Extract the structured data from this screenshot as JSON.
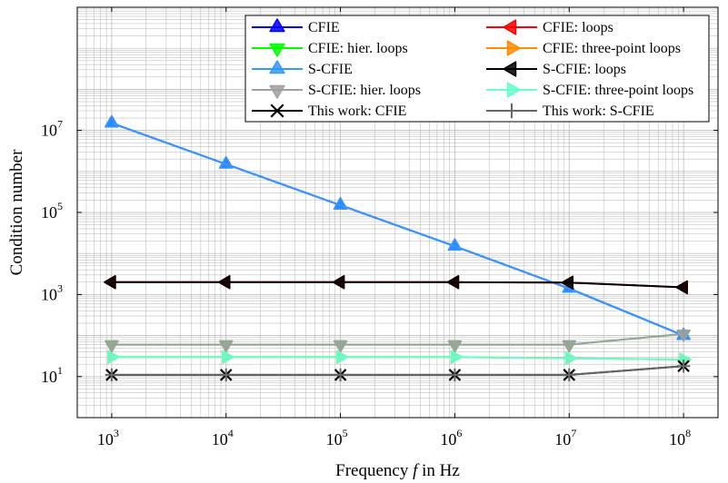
{
  "chart_data": {
    "type": "line",
    "x_scale": "log",
    "y_scale": "log",
    "xlim": [
      500,
      200000000
    ],
    "ylim": [
      1,
      10000000000
    ],
    "grid": true,
    "legend_placement": "top-right",
    "legend_columns": 2,
    "xlabel": {
      "prefix": "Frequency ",
      "var": "f",
      "suffix": " in Hz"
    },
    "ylabel": "Condition number",
    "x_ticks": [
      {
        "base": "10",
        "exp": "3",
        "value": 1000
      },
      {
        "base": "10",
        "exp": "4",
        "value": 10000
      },
      {
        "base": "10",
        "exp": "5",
        "value": 100000
      },
      {
        "base": "10",
        "exp": "6",
        "value": 1000000
      },
      {
        "base": "10",
        "exp": "7",
        "value": 10000000
      },
      {
        "base": "10",
        "exp": "8",
        "value": 100000000
      }
    ],
    "y_ticks": [
      {
        "base": "10",
        "exp": "1",
        "value": 10
      },
      {
        "base": "10",
        "exp": "3",
        "value": 1000
      },
      {
        "base": "10",
        "exp": "5",
        "value": 100000
      },
      {
        "base": "10",
        "exp": "7",
        "value": 10000000
      }
    ],
    "x": [
      1000,
      10000,
      100000,
      1000000,
      10000000,
      100000000
    ],
    "series": [
      {
        "name": "CFIE",
        "color": "#0000ff",
        "marker": "triangle-up",
        "values": [
          15000000,
          1500000,
          150000,
          15000,
          1400,
          100
        ]
      },
      {
        "name": "CFIE: loops",
        "color": "#ff0000",
        "marker": "triangle-left",
        "values": [
          2000,
          2000,
          2000,
          2000,
          1950,
          1500
        ]
      },
      {
        "name": "CFIE: hier. loops",
        "color": "#00ff00",
        "marker": "triangle-down",
        "values": [
          60,
          60,
          60,
          60,
          60,
          110
        ]
      },
      {
        "name": "CFIE: three-point loops",
        "color": "#ff8c00",
        "marker": "triangle-right",
        "values": [
          30,
          30,
          30,
          30,
          28,
          26
        ]
      },
      {
        "name": "S-CFIE",
        "color": "#3399ff",
        "marker": "triangle-up",
        "values": [
          15000000,
          1500000,
          150000,
          15000,
          1400,
          100
        ]
      },
      {
        "name": "S-CFIE: loops",
        "color": "#000000",
        "marker": "triangle-left",
        "values": [
          2000,
          2000,
          2000,
          2000,
          1950,
          1500
        ]
      },
      {
        "name": "S-CFIE: hier. loops",
        "color": "#a0a0a0",
        "marker": "triangle-down",
        "values": [
          60,
          60,
          60,
          60,
          60,
          110
        ]
      },
      {
        "name": "S-CFIE: three-point loops",
        "color": "#66ffcc",
        "marker": "triangle-right",
        "values": [
          30,
          30,
          30,
          30,
          28,
          26
        ]
      },
      {
        "name": "This work: CFIE",
        "color": "#000000",
        "marker": "cross",
        "values": [
          11,
          11,
          11,
          11,
          11,
          18
        ]
      },
      {
        "name": "This work: S-CFIE",
        "color": "#666666",
        "marker": "plus",
        "values": [
          11,
          11,
          11,
          11,
          11,
          18
        ]
      }
    ],
    "legend_order": [
      "CFIE",
      "CFIE: loops",
      "CFIE: hier. loops",
      "CFIE: three-point loops",
      "S-CFIE",
      "S-CFIE: loops",
      "S-CFIE: hier. loops",
      "S-CFIE: three-point loops",
      "This work: CFIE",
      "This work: S-CFIE"
    ]
  }
}
